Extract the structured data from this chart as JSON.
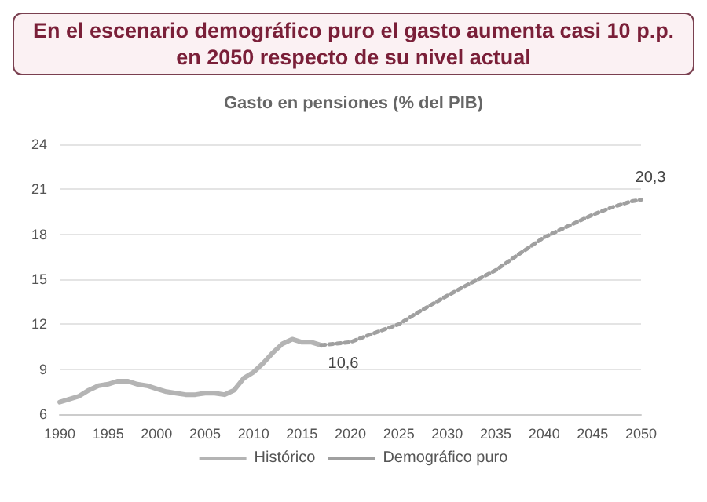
{
  "chart_data": {
    "type": "line",
    "title": "En el escenario demográfico puro el gasto aumenta casi 10 p.p. en 2050 respecto de su nivel actual",
    "subtitle": "Gasto en pensiones (% del PIB)",
    "xlim": [
      1990,
      2050
    ],
    "xticks": [
      1990,
      1995,
      2000,
      2005,
      2010,
      2015,
      2020,
      2025,
      2030,
      2035,
      2040,
      2045,
      2050
    ],
    "ylim": [
      6,
      24
    ],
    "yticks": [
      6,
      9,
      12,
      15,
      18,
      21,
      24
    ],
    "grid": "y",
    "legend": "bottom",
    "marker": "none",
    "series": [
      {
        "name": "Histórico",
        "color": "#b4b4b4",
        "line_style": "solid",
        "x": [
          1990,
          1991,
          1992,
          1993,
          1994,
          1995,
          1996,
          1997,
          1998,
          1999,
          2000,
          2001,
          2002,
          2003,
          2004,
          2005,
          2006,
          2007,
          2008,
          2009,
          2010,
          2011,
          2012,
          2013,
          2014,
          2015,
          2016,
          2017
        ],
        "values": [
          6.8,
          7.0,
          7.2,
          7.6,
          7.9,
          8.0,
          8.2,
          8.2,
          8.0,
          7.9,
          7.7,
          7.5,
          7.4,
          7.3,
          7.3,
          7.4,
          7.4,
          7.3,
          7.6,
          8.4,
          8.8,
          9.4,
          10.1,
          10.7,
          11.0,
          10.8,
          10.8,
          10.6
        ],
        "value_labels": [
          null,
          null,
          null,
          null,
          null,
          null,
          null,
          null,
          null,
          null,
          null,
          null,
          null,
          null,
          null,
          null,
          null,
          null,
          null,
          null,
          null,
          null,
          null,
          null,
          null,
          null,
          null,
          "10,6"
        ]
      },
      {
        "name": "Demográfico puro",
        "color": "#a0a0a0",
        "line_style": "dotted",
        "x": [
          2017,
          2020,
          2022,
          2025,
          2027,
          2030,
          2032,
          2035,
          2037,
          2040,
          2042,
          2045,
          2047,
          2049,
          2050
        ],
        "values": [
          10.6,
          10.8,
          11.3,
          12.0,
          12.8,
          13.9,
          14.6,
          15.6,
          16.5,
          17.8,
          18.4,
          19.3,
          19.8,
          20.2,
          20.3
        ],
        "value_labels": [
          null,
          null,
          null,
          null,
          null,
          null,
          null,
          null,
          null,
          null,
          null,
          null,
          null,
          null,
          "20,3"
        ]
      }
    ]
  }
}
